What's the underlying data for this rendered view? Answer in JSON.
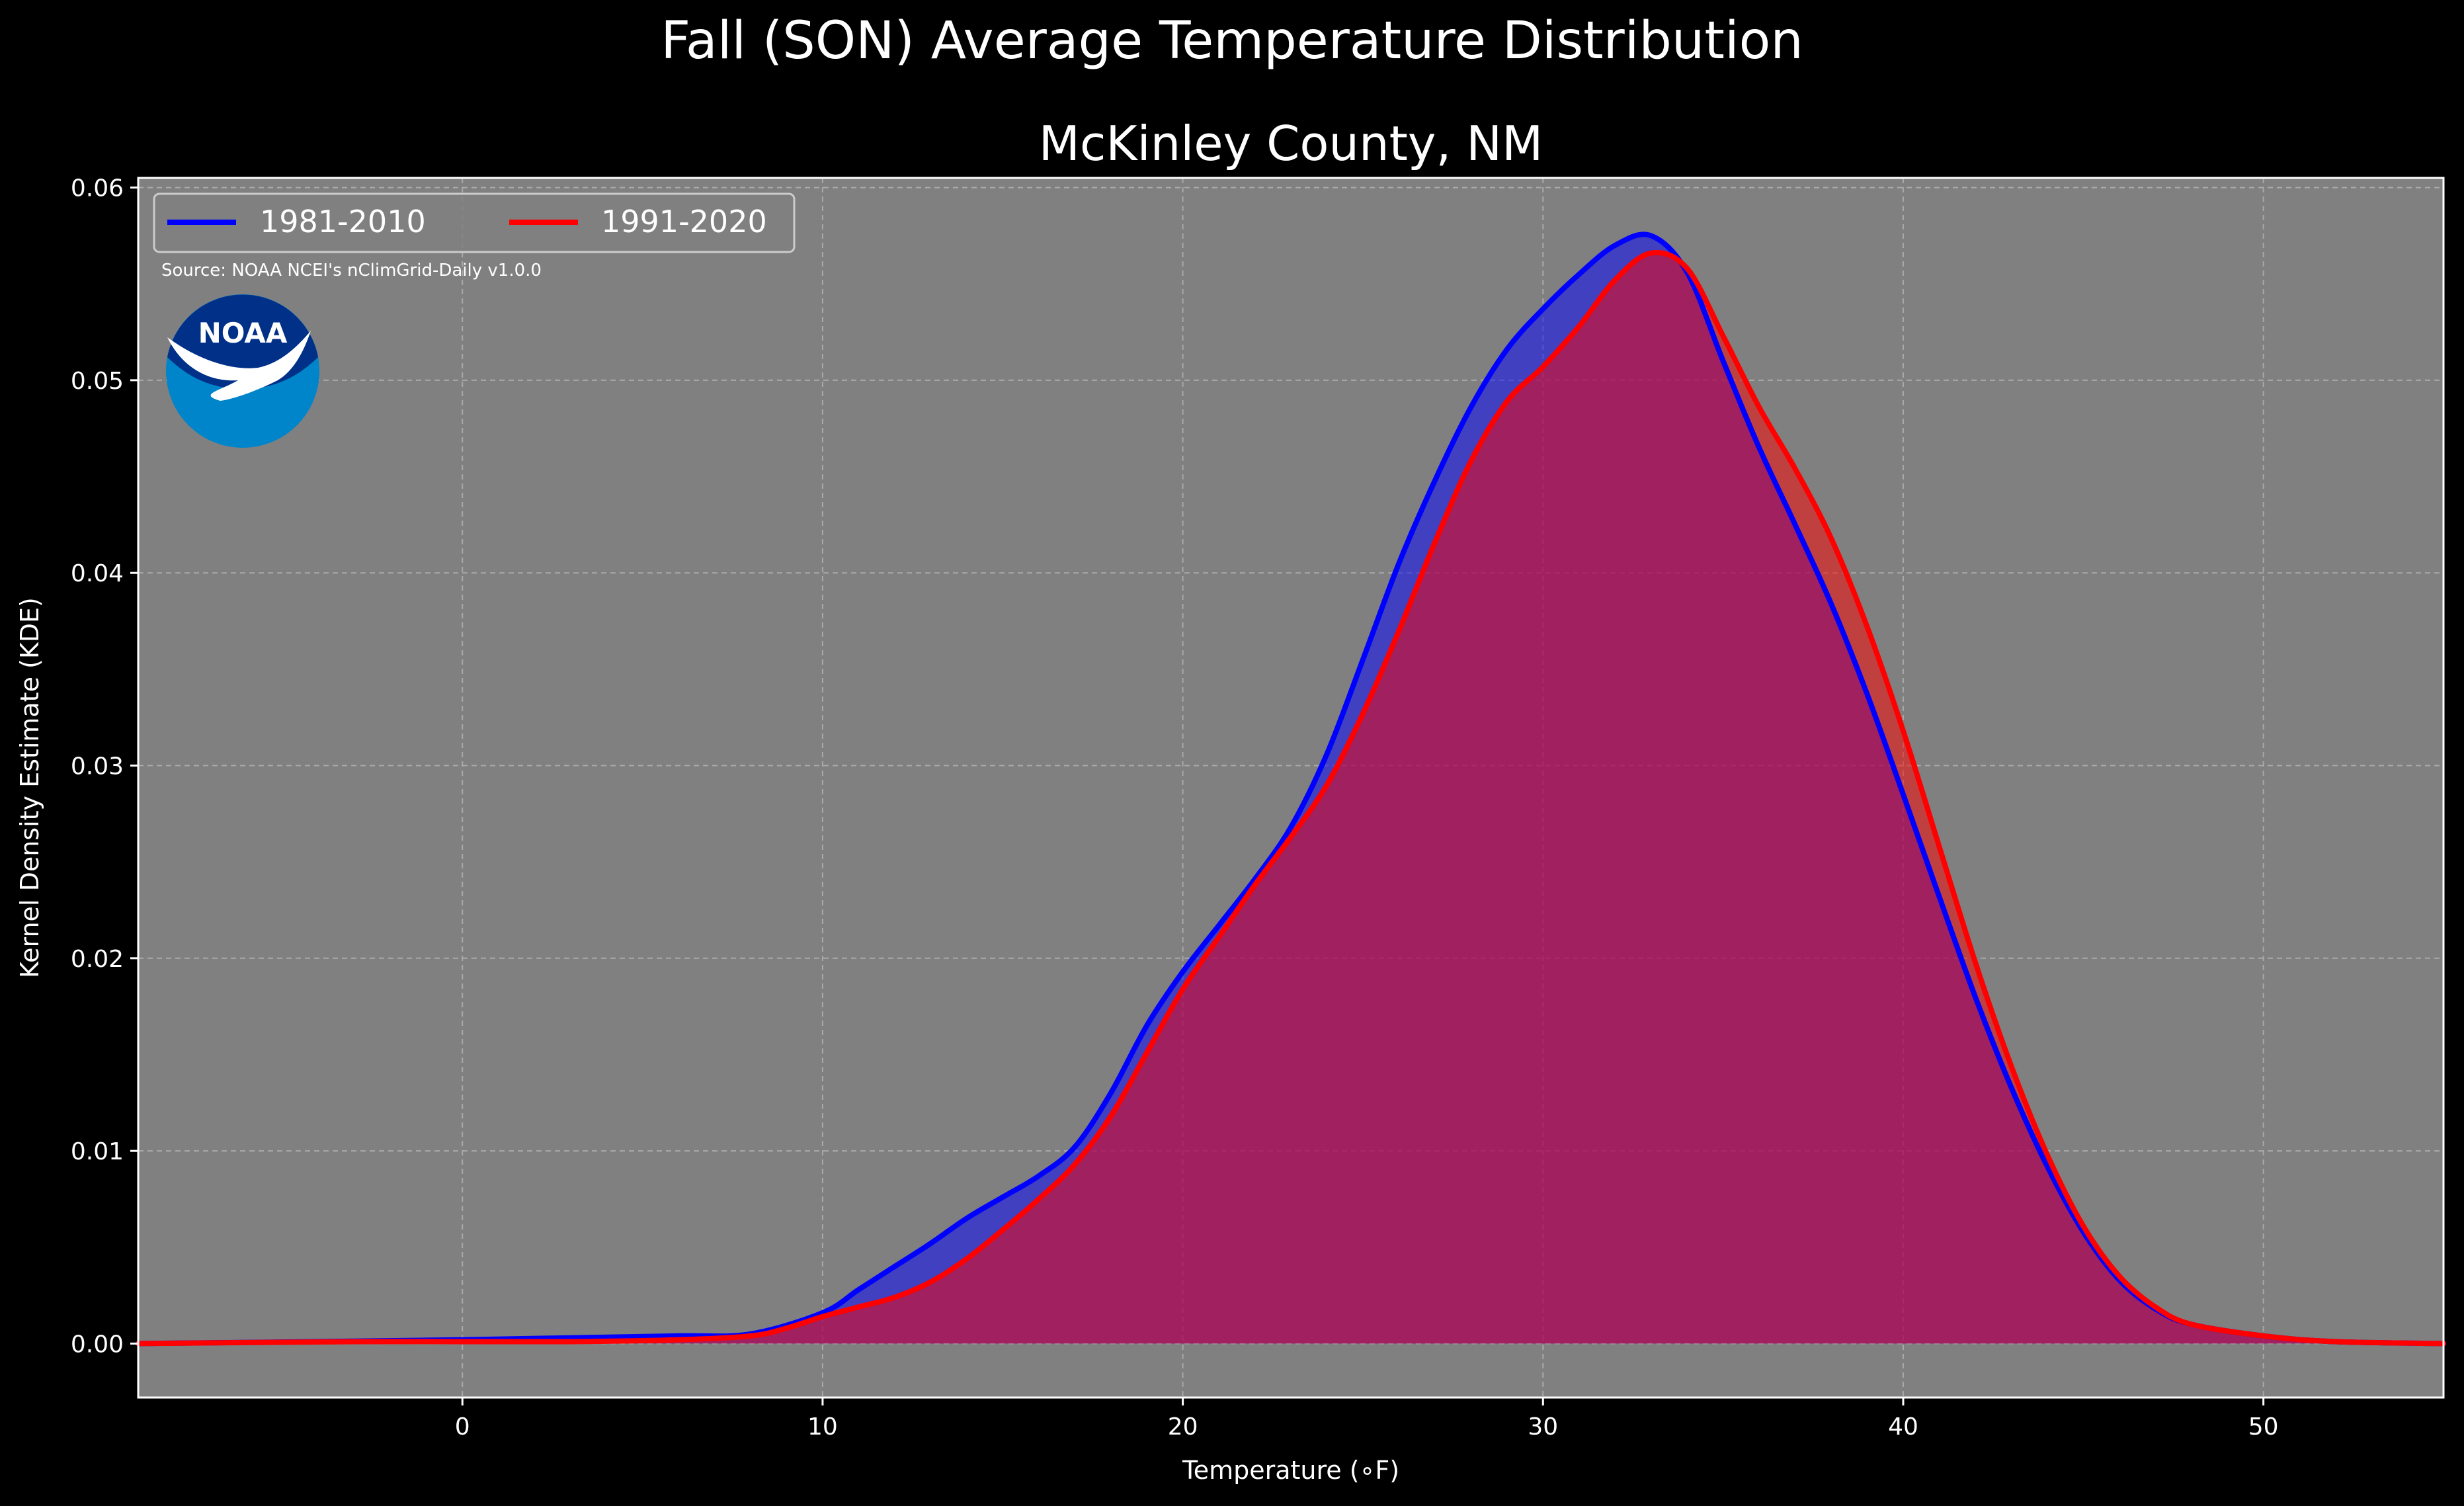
{
  "suptitle": "Fall (SON) Average Temperature Distribution",
  "title": "McKinley County, NM",
  "source": "Source: NOAA NCEI's nClimGrid-Daily v1.0.0",
  "logo": {
    "icon": "noaa-logo",
    "text": "NOAA",
    "colors": {
      "outer": "#0085ca",
      "inner": "#003087"
    }
  },
  "colors": {
    "background": "#000000",
    "plot_background": "#808080",
    "series_1": "#0000ff",
    "series_2": "#ff0000"
  },
  "chart_data": {
    "type": "area",
    "xlabel": "Temperature (∘F)",
    "ylabel": "Kernel Density Estimate (KDE)",
    "xlim": [
      -9,
      55
    ],
    "ylim": [
      -0.0028,
      0.0605
    ],
    "xticks": [
      0,
      10,
      20,
      30,
      40,
      50
    ],
    "yticks": [
      0.0,
      0.01,
      0.02,
      0.03,
      0.04,
      0.05,
      0.06
    ],
    "ytick_labels": [
      "0.00",
      "0.01",
      "0.02",
      "0.03",
      "0.04",
      "0.05",
      "0.06"
    ],
    "grid": true,
    "legend_position": "upper-left",
    "series": [
      {
        "name": "1981-2010",
        "color": "#0000ff",
        "x": [
          -9,
          -4,
          0,
          3,
          6,
          8,
          10,
          11,
          12,
          13,
          14,
          15,
          16,
          17,
          18,
          19,
          20,
          21,
          22,
          23,
          24,
          25,
          26,
          27,
          28,
          29,
          30,
          31,
          32,
          33,
          34,
          35,
          36,
          37,
          38,
          39,
          40,
          41,
          42,
          43,
          44,
          45,
          46,
          47,
          48,
          50,
          52,
          55
        ],
        "y": [
          0.0,
          0.0001,
          0.0002,
          0.0003,
          0.0004,
          0.0005,
          0.0016,
          0.0028,
          0.004,
          0.0052,
          0.0065,
          0.0076,
          0.0087,
          0.0102,
          0.013,
          0.0165,
          0.0193,
          0.0217,
          0.0241,
          0.0268,
          0.0306,
          0.0355,
          0.0405,
          0.0448,
          0.0486,
          0.0516,
          0.0537,
          0.0555,
          0.057,
          0.0575,
          0.0556,
          0.051,
          0.0465,
          0.0425,
          0.0384,
          0.0337,
          0.0285,
          0.0232,
          0.018,
          0.0133,
          0.0092,
          0.0058,
          0.0033,
          0.0018,
          0.001,
          0.0004,
          0.0001,
          0.0
        ]
      },
      {
        "name": "1991-2020",
        "color": "#ff0000",
        "x": [
          -9,
          -3,
          0,
          3,
          6,
          8,
          9,
          10,
          11,
          12,
          13,
          14,
          15,
          16,
          17,
          18,
          19,
          20,
          21,
          22,
          23,
          24,
          25,
          26,
          27,
          28,
          29,
          30,
          31,
          32,
          33,
          34,
          35,
          36,
          37,
          38,
          39,
          40,
          41,
          42,
          43,
          44,
          45,
          46,
          47,
          48,
          50,
          52,
          55
        ],
        "y": [
          0.0,
          0.0001,
          0.0001,
          0.0001,
          0.0002,
          0.0004,
          0.0008,
          0.0014,
          0.0019,
          0.0024,
          0.0032,
          0.0044,
          0.0059,
          0.0075,
          0.0093,
          0.0118,
          0.0151,
          0.0184,
          0.0211,
          0.0238,
          0.0263,
          0.029,
          0.0327,
          0.037,
          0.0416,
          0.0458,
          0.0489,
          0.0507,
          0.0528,
          0.0552,
          0.0566,
          0.0558,
          0.0523,
          0.0486,
          0.0454,
          0.0418,
          0.0372,
          0.0318,
          0.0258,
          0.0198,
          0.0144,
          0.0098,
          0.0061,
          0.0035,
          0.0019,
          0.001,
          0.0004,
          0.0001,
          0.0
        ]
      }
    ]
  }
}
